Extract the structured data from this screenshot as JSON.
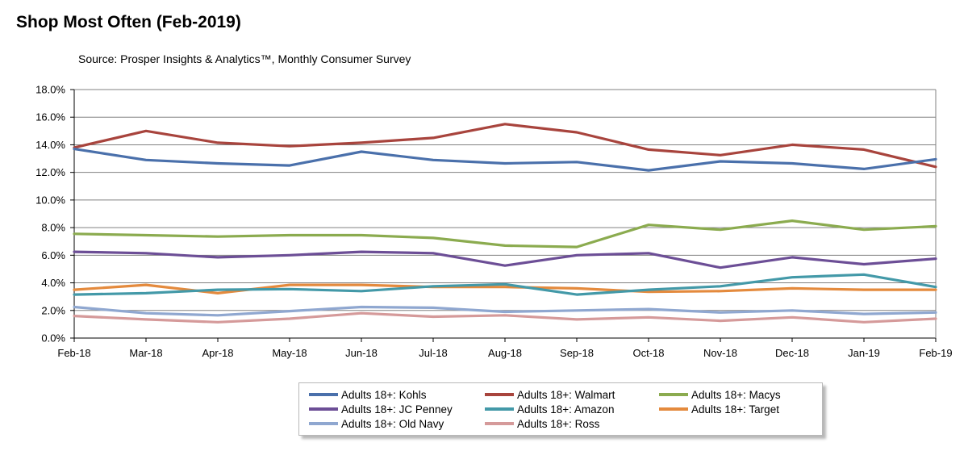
{
  "chart_data": {
    "type": "line",
    "title": "Shop Most Often (Feb-2019)",
    "subtitle": "Source: Prosper Insights & Analytics™, Monthly Consumer Survey",
    "xlabel": "",
    "ylabel": "",
    "categories": [
      "Feb-18",
      "Mar-18",
      "Apr-18",
      "May-18",
      "Jun-18",
      "Jul-18",
      "Aug-18",
      "Sep-18",
      "Oct-18",
      "Nov-18",
      "Dec-18",
      "Jan-19",
      "Feb-19"
    ],
    "ylim": [
      0,
      18
    ],
    "y_ticks": [
      0,
      2,
      4,
      6,
      8,
      10,
      12,
      14,
      16,
      18
    ],
    "y_tick_labels": [
      "0.0%",
      "2.0%",
      "4.0%",
      "6.0%",
      "8.0%",
      "10.0%",
      "12.0%",
      "14.0%",
      "16.0%",
      "18.0%"
    ],
    "grid": true,
    "legend_position": "bottom",
    "series": [
      {
        "name": "Adults 18+: Kohls",
        "color": "#4a70ab",
        "values": [
          13.7,
          12.9,
          12.65,
          12.5,
          13.5,
          12.9,
          12.65,
          12.75,
          12.15,
          12.8,
          12.65,
          12.25,
          12.95
        ]
      },
      {
        "name": "Adults 18+: Walmart",
        "color": "#a8443d",
        "values": [
          13.8,
          15.0,
          14.15,
          13.9,
          14.15,
          14.5,
          15.5,
          14.9,
          13.65,
          13.25,
          14.0,
          13.65,
          12.4
        ]
      },
      {
        "name": "Adults 18+: Macys",
        "color": "#8bab4f",
        "values": [
          7.55,
          7.45,
          7.35,
          7.45,
          7.45,
          7.25,
          6.7,
          6.6,
          8.2,
          7.85,
          8.5,
          7.85,
          8.1
        ]
      },
      {
        "name": "Adults 18+: JC Penney",
        "color": "#6c4e96",
        "values": [
          6.25,
          6.15,
          5.85,
          6.0,
          6.25,
          6.15,
          5.25,
          6.0,
          6.15,
          5.1,
          5.85,
          5.35,
          5.75
        ]
      },
      {
        "name": "Adults 18+: Amazon",
        "color": "#4399a8",
        "values": [
          3.15,
          3.25,
          3.5,
          3.55,
          3.4,
          3.75,
          3.9,
          3.15,
          3.5,
          3.75,
          4.4,
          4.6,
          3.7
        ]
      },
      {
        "name": "Adults 18+: Target",
        "color": "#e48a3d",
        "values": [
          3.5,
          3.85,
          3.25,
          3.85,
          3.85,
          3.7,
          3.7,
          3.6,
          3.35,
          3.4,
          3.6,
          3.5,
          3.5
        ]
      },
      {
        "name": "Adults 18+: Old Navy",
        "color": "#8fa7d0",
        "values": [
          2.25,
          1.8,
          1.65,
          1.95,
          2.25,
          2.2,
          1.9,
          2.0,
          2.1,
          1.85,
          2.0,
          1.75,
          1.85
        ]
      },
      {
        "name": "Adults 18+: Ross",
        "color": "#d59a9a",
        "values": [
          1.6,
          1.35,
          1.15,
          1.4,
          1.8,
          1.55,
          1.65,
          1.35,
          1.5,
          1.25,
          1.5,
          1.15,
          1.4
        ]
      }
    ]
  }
}
